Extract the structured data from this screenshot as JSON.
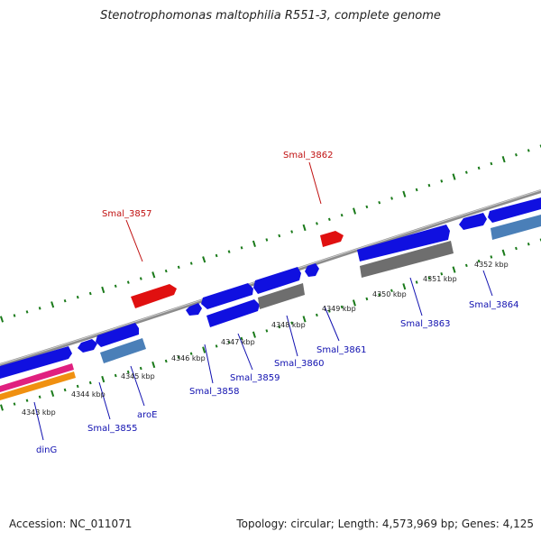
{
  "title": "Stenotrophomonas maltophilia R551-3, complete genome",
  "footer": {
    "accession": "Accession: NC_011071",
    "summary": "Topology: circular; Length: 4,573,969 bp; Genes: 4,125"
  },
  "colors": {
    "cds_forward": "#1010e0",
    "cds_reverse": "#1010e0",
    "rna_steel": "#4a7fb8",
    "pseudo_gray": "#6e6e6e",
    "highlight_red": "#e01010",
    "magenta_track": "#e0207f",
    "orange_track": "#f09010",
    "backbone": "#8c8c8c",
    "tick_green": "#1a7a1a",
    "label_blue": "#1010b0",
    "label_red": "#c01010"
  },
  "scale_labels": [
    "4343 kbp",
    "4344 kbp",
    "4345 kbp",
    "4346 kbp",
    "4347 kbp",
    "4348 kbp",
    "4349 kbp",
    "4350 kbp",
    "4351 kbp",
    "4352 kbp"
  ],
  "gene_labels": {
    "dinG": "dinG",
    "smal3855": "Smal_3855",
    "aroE": "aroE",
    "smal3857": "Smal_3857",
    "smal3858": "Smal_3858",
    "smal3859": "Smal_3859",
    "smal3860": "Smal_3860",
    "smal3861": "Smal_3861",
    "smal3862": "Smal_3862",
    "smal3863": "Smal_3863",
    "smal3864": "Smal_3864"
  }
}
